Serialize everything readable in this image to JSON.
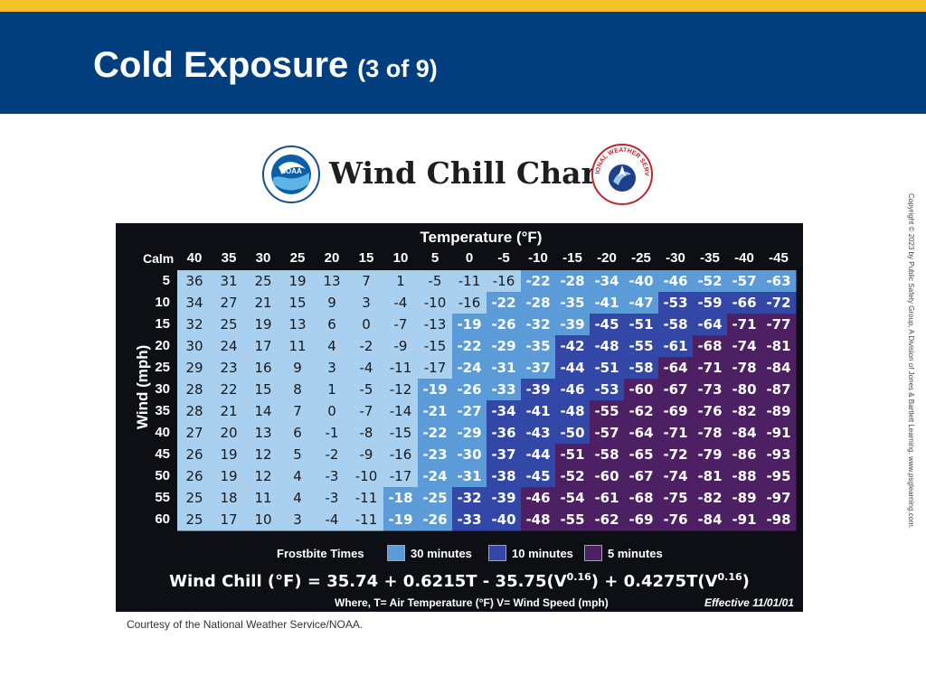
{
  "slide": {
    "title": "Cold Exposure",
    "title_sub": "(3 of 9)",
    "credit": "Courtesy of the National Weather Service/NOAA.",
    "copyright": "Copyright © 2023 by Public Safety Group, A Division of Jones & Bartlett Learning. www.psglearning.com."
  },
  "logos": {
    "noaa_text": "NOAA",
    "nws_text": "NATIONAL WEATHER SERVICE"
  },
  "colors": {
    "title_bar": "#003e7e",
    "top_stripe": "#f6c02a",
    "chart_background": "#0d0f14",
    "zone_none": "#a9d0ef",
    "zone_30_minutes": "#5b9bd8",
    "zone_10_minutes": "#3348a6",
    "zone_5_minutes": "#4d1f63"
  },
  "chart_data": {
    "type": "table",
    "title": "Wind Chill Chart",
    "temperature_label": "Temperature (°F)",
    "wind_label": "Wind (mph)",
    "calm_label": "Calm",
    "temperatures": [
      "40",
      "35",
      "30",
      "25",
      "20",
      "15",
      "10",
      "5",
      "0",
      "-5",
      "-10",
      "-15",
      "-20",
      "-25",
      "-30",
      "-35",
      "-40",
      "-45"
    ],
    "wind_speeds": [
      "5",
      "10",
      "15",
      "20",
      "25",
      "30",
      "35",
      "40",
      "45",
      "50",
      "55",
      "60"
    ],
    "values": [
      [
        36,
        31,
        25,
        19,
        13,
        7,
        1,
        -5,
        -11,
        -16,
        -22,
        -28,
        -34,
        -40,
        -46,
        -52,
        -57,
        -63
      ],
      [
        34,
        27,
        21,
        15,
        9,
        3,
        -4,
        -10,
        -16,
        -22,
        -28,
        -35,
        -41,
        -47,
        -53,
        -59,
        -66,
        -72
      ],
      [
        32,
        25,
        19,
        13,
        6,
        0,
        -7,
        -13,
        -19,
        -26,
        -32,
        -39,
        -45,
        -51,
        -58,
        -64,
        -71,
        -77
      ],
      [
        30,
        24,
        17,
        11,
        4,
        -2,
        -9,
        -15,
        -22,
        -29,
        -35,
        -42,
        -48,
        -55,
        -61,
        -68,
        -74,
        -81
      ],
      [
        29,
        23,
        16,
        9,
        3,
        -4,
        -11,
        -17,
        -24,
        -31,
        -37,
        -44,
        -51,
        -58,
        -64,
        -71,
        -78,
        -84
      ],
      [
        28,
        22,
        15,
        8,
        1,
        -5,
        -12,
        -19,
        -26,
        -33,
        -39,
        -46,
        -53,
        -60,
        -67,
        -73,
        -80,
        -87
      ],
      [
        28,
        21,
        14,
        7,
        0,
        -7,
        -14,
        -21,
        -27,
        -34,
        -41,
        -48,
        -55,
        -62,
        -69,
        -76,
        -82,
        -89
      ],
      [
        27,
        20,
        13,
        6,
        -1,
        -8,
        -15,
        -22,
        -29,
        -36,
        -43,
        -50,
        -57,
        -64,
        -71,
        -78,
        -84,
        -91
      ],
      [
        26,
        19,
        12,
        5,
        -2,
        -9,
        -16,
        -23,
        -30,
        -37,
        -44,
        -51,
        -58,
        -65,
        -72,
        -79,
        -86,
        -93
      ],
      [
        26,
        19,
        12,
        4,
        -3,
        -10,
        -17,
        -24,
        -31,
        -38,
        -45,
        -52,
        -60,
        -67,
        -74,
        -81,
        -88,
        -95
      ],
      [
        25,
        18,
        11,
        4,
        -3,
        -11,
        -18,
        -25,
        -32,
        -39,
        -46,
        -54,
        -61,
        -68,
        -75,
        -82,
        -89,
        -97
      ],
      [
        25,
        17,
        10,
        3,
        -4,
        -11,
        -19,
        -26,
        -33,
        -40,
        -48,
        -55,
        -62,
        -69,
        -76,
        -84,
        -91,
        -98
      ]
    ],
    "zones": [
      [
        0,
        0,
        0,
        0,
        0,
        0,
        0,
        0,
        0,
        0,
        1,
        1,
        1,
        1,
        1,
        1,
        1,
        1
      ],
      [
        0,
        0,
        0,
        0,
        0,
        0,
        0,
        0,
        0,
        1,
        1,
        1,
        1,
        1,
        2,
        2,
        2,
        2
      ],
      [
        0,
        0,
        0,
        0,
        0,
        0,
        0,
        0,
        1,
        1,
        1,
        1,
        2,
        2,
        2,
        2,
        3,
        3
      ],
      [
        0,
        0,
        0,
        0,
        0,
        0,
        0,
        0,
        1,
        1,
        1,
        2,
        2,
        2,
        2,
        3,
        3,
        3
      ],
      [
        0,
        0,
        0,
        0,
        0,
        0,
        0,
        0,
        1,
        1,
        1,
        2,
        2,
        2,
        3,
        3,
        3,
        3
      ],
      [
        0,
        0,
        0,
        0,
        0,
        0,
        0,
        1,
        1,
        1,
        2,
        2,
        2,
        3,
        3,
        3,
        3,
        3
      ],
      [
        0,
        0,
        0,
        0,
        0,
        0,
        0,
        1,
        1,
        2,
        2,
        2,
        3,
        3,
        3,
        3,
        3,
        3
      ],
      [
        0,
        0,
        0,
        0,
        0,
        0,
        0,
        1,
        1,
        2,
        2,
        2,
        3,
        3,
        3,
        3,
        3,
        3
      ],
      [
        0,
        0,
        0,
        0,
        0,
        0,
        0,
        1,
        1,
        2,
        2,
        3,
        3,
        3,
        3,
        3,
        3,
        3
      ],
      [
        0,
        0,
        0,
        0,
        0,
        0,
        0,
        1,
        1,
        2,
        2,
        3,
        3,
        3,
        3,
        3,
        3,
        3
      ],
      [
        0,
        0,
        0,
        0,
        0,
        0,
        1,
        1,
        2,
        2,
        3,
        3,
        3,
        3,
        3,
        3,
        3,
        3
      ],
      [
        0,
        0,
        0,
        0,
        0,
        0,
        1,
        1,
        2,
        2,
        3,
        3,
        3,
        3,
        3,
        3,
        3,
        3
      ]
    ],
    "legend": {
      "title": "Frostbite Times",
      "items": [
        "30 minutes",
        "10 minutes",
        "5 minutes"
      ]
    },
    "formula": "Wind Chill (°F) = 35.74 + 0.6215T - 35.75(V",
    "formula_parts": {
      "left": "Wind Chill (°F) = 35.74 + 0.6215T - 35.75(V",
      "exp1": "0.16",
      "mid": ") + 0.4275T(V",
      "exp2": "0.16",
      "right": ")"
    },
    "where_text": "Where, T= Air Temperature (°F)  V= Wind Speed (mph)",
    "effective": "Effective 11/01/01"
  }
}
